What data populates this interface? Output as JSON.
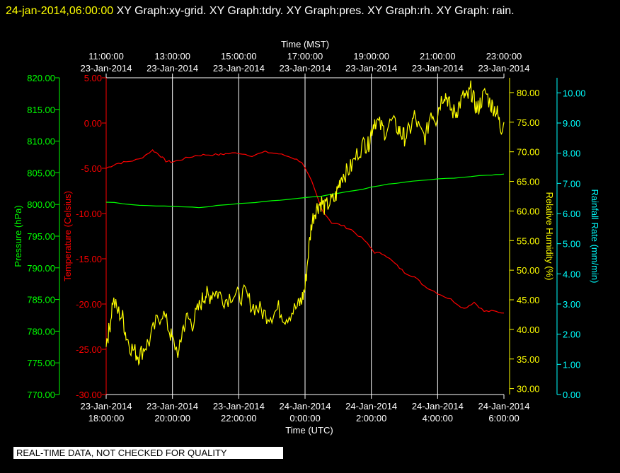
{
  "header": {
    "timestamp": "24-jan-2014,06:00:00",
    "description": "XY Graph:xy-grid.  XY Graph:tdry.  XY Graph:pres.  XY Graph:rh.  XY Graph: rain."
  },
  "disclaimer": "REAL-TIME DATA, NOT CHECKED FOR QUALITY",
  "colors": {
    "background": "#000000",
    "pressure": "#00ff00",
    "temperature": "#ff0000",
    "humidity": "#ffff00",
    "rain": "#00ffff",
    "grid": "#ffffff"
  },
  "chart_data": {
    "type": "line",
    "x_top_title": "Time (MST)",
    "x_bottom_title": "Time (UTC)",
    "x_range_utc_hours": [
      18,
      30
    ],
    "x_ticks_utc_hours": [
      18,
      20,
      22,
      24,
      26,
      28,
      30
    ],
    "top_ticks": [
      [
        "11:00:00",
        "23-Jan-2014"
      ],
      [
        "13:00:00",
        "23-Jan-2014"
      ],
      [
        "15:00:00",
        "23-Jan-2014"
      ],
      [
        "17:00:00",
        "23-Jan-2014"
      ],
      [
        "19:00:00",
        "23-Jan-2014"
      ],
      [
        "21:00:00",
        "23-Jan-2014"
      ],
      [
        "23:00:00",
        "23-Jan-2014"
      ]
    ],
    "bottom_ticks": [
      [
        "23-Jan-2014",
        "18:00:00"
      ],
      [
        "23-Jan-2014",
        "20:00:00"
      ],
      [
        "23-Jan-2014",
        "22:00:00"
      ],
      [
        "24-Jan-2014",
        "0:00:00"
      ],
      [
        "24-Jan-2014",
        "2:00:00"
      ],
      [
        "24-Jan-2014",
        "4:00:00"
      ],
      [
        "24-Jan-2014",
        "6:00:00"
      ]
    ],
    "grid": "vertical",
    "axes": {
      "pressure": {
        "label": "Pressure (hPa)",
        "range": [
          770,
          820
        ],
        "ticks": [
          "770.00",
          "775.00",
          "780.00",
          "785.00",
          "790.00",
          "795.00",
          "800.00",
          "805.00",
          "810.00",
          "815.00",
          "820.00"
        ]
      },
      "temperature": {
        "label": "Temperature (Celsius)",
        "range": [
          -30,
          5
        ],
        "ticks": [
          "-30.00",
          "-25.00",
          "-20.00",
          "-15.00",
          "-10.00",
          "-5.00",
          "0.00",
          "5.00"
        ]
      },
      "humidity": {
        "label": "Relative Humidity (%)",
        "range": [
          29,
          82.5
        ],
        "ticks": [
          "30.00",
          "35.00",
          "40.00",
          "45.00",
          "50.00",
          "55.00",
          "60.00",
          "65.00",
          "70.00",
          "75.00",
          "80.00"
        ]
      },
      "rain": {
        "label": "Rainfall Rate (mm/min)",
        "range": [
          0,
          10.5
        ],
        "ticks": [
          "0.00",
          "1.00",
          "2.00",
          "3.00",
          "4.00",
          "5.00",
          "6.00",
          "7.00",
          "8.00",
          "9.00",
          "10.00"
        ]
      }
    },
    "series": [
      {
        "key": "temperature",
        "x": [
          18.0,
          18.3,
          18.6,
          19.0,
          19.4,
          19.6,
          19.8,
          20.0,
          20.3,
          20.7,
          21.0,
          21.4,
          21.6,
          22.0,
          22.4,
          22.8,
          23.2,
          23.6,
          23.9,
          24.2,
          24.5,
          24.8,
          25.1,
          25.4,
          25.8,
          26.1,
          26.4,
          26.7,
          27.0,
          27.3,
          27.6,
          28.0,
          28.4,
          28.8,
          29.1,
          29.4,
          29.7,
          30.0
        ],
        "values": [
          -5.0,
          -4.5,
          -4.3,
          -4.0,
          -3.0,
          -3.5,
          -4.2,
          -4.3,
          -4.0,
          -3.6,
          -3.5,
          -3.5,
          -3.4,
          -3.3,
          -3.6,
          -3.2,
          -3.4,
          -3.8,
          -4.3,
          -6.5,
          -9.5,
          -11.0,
          -11.3,
          -11.8,
          -13.0,
          -14.3,
          -14.5,
          -15.5,
          -16.5,
          -17.0,
          -18.0,
          -18.8,
          -19.5,
          -20.5,
          -19.8,
          -20.8,
          -20.8,
          -21.0
        ]
      },
      {
        "key": "pressure",
        "x": [
          18.0,
          19.0,
          20.0,
          20.8,
          21.5,
          22.5,
          23.5,
          24.5,
          25.5,
          26.5,
          27.5,
          28.5,
          29.5,
          30.0
        ],
        "values": [
          800.4,
          799.9,
          799.7,
          799.5,
          799.9,
          800.3,
          800.8,
          801.3,
          802.2,
          803.2,
          803.8,
          804.2,
          804.6,
          804.8
        ]
      },
      {
        "key": "humidity",
        "x": [
          18.0,
          18.1,
          18.2,
          18.35,
          18.5,
          18.6,
          18.75,
          18.9,
          19.0,
          19.15,
          19.3,
          19.5,
          19.7,
          19.9,
          20.0,
          20.2,
          20.3,
          20.45,
          20.6,
          20.75,
          20.9,
          21.0,
          21.1,
          21.25,
          21.4,
          21.6,
          21.8,
          22.0,
          22.2,
          22.4,
          22.6,
          22.8,
          23.0,
          23.2,
          23.4,
          23.6,
          23.8,
          23.9,
          24.0,
          24.1,
          24.2,
          24.3,
          24.4,
          24.5,
          24.6,
          24.75,
          24.9,
          25.0,
          25.1,
          25.25,
          25.4,
          25.6,
          25.8,
          25.9,
          26.0,
          26.1,
          26.25,
          26.4,
          26.6,
          26.8,
          26.9,
          27.0,
          27.15,
          27.3,
          27.5,
          27.65,
          27.8,
          27.95,
          28.05,
          28.2,
          28.3,
          28.4,
          28.55,
          28.65,
          28.8,
          28.9,
          29.0,
          29.1,
          29.2,
          29.3,
          29.45,
          29.6,
          29.7,
          29.8,
          29.9,
          30.0
        ],
        "values": [
          38.0,
          40.0,
          45.0,
          43.0,
          42.0,
          39.0,
          37.0,
          36.0,
          35.5,
          37.0,
          38.0,
          41.0,
          43.0,
          40.0,
          38.0,
          36.0,
          40.0,
          42.0,
          41.0,
          43.0,
          45.0,
          46.0,
          45.5,
          46.5,
          46.0,
          45.0,
          46.0,
          45.5,
          46.0,
          44.0,
          43.5,
          42.5,
          42.5,
          43.5,
          42.0,
          43.0,
          44.0,
          45.0,
          47.0,
          53.0,
          58.0,
          60.0,
          61.0,
          61.5,
          60.5,
          61.5,
          62.0,
          64.0,
          66.0,
          66.5,
          67.5,
          70.0,
          71.5,
          71.0,
          73.5,
          75.5,
          74.5,
          73.5,
          75.0,
          74.0,
          73.0,
          72.5,
          73.5,
          76.0,
          73.0,
          72.5,
          77.0,
          75.5,
          78.0,
          80.0,
          79.0,
          77.0,
          76.5,
          78.0,
          79.5,
          79.0,
          80.5,
          78.5,
          77.0,
          78.5,
          80.0,
          78.0,
          77.5,
          76.5,
          74.0,
          75.0
        ]
      },
      {
        "key": "rain",
        "x": [],
        "values": []
      }
    ]
  }
}
